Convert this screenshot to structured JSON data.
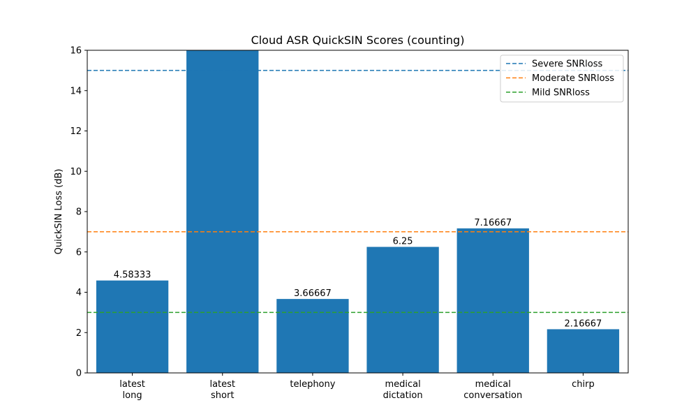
{
  "chart_data": {
    "type": "bar",
    "title": "Cloud ASR QuickSIN Scores (counting)",
    "xlabel": "",
    "ylabel": "QuickSIN Loss (dB)",
    "ylim": [
      0,
      16
    ],
    "yticks": [
      0,
      2,
      4,
      6,
      8,
      10,
      12,
      14,
      16
    ],
    "categories": [
      [
        "latest",
        "long"
      ],
      [
        "latest",
        "short"
      ],
      [
        "telephony"
      ],
      [
        "medical",
        "dictation"
      ],
      [
        "medical",
        "conversation"
      ],
      [
        "chirp"
      ]
    ],
    "values": [
      4.58333,
      16,
      3.66667,
      6.25,
      7.16667,
      2.16667
    ],
    "data_labels": [
      "4.58333",
      "",
      "3.66667",
      "6.25",
      "7.16667",
      "2.16667"
    ],
    "bar_color": "#1f77b4",
    "reference_lines": [
      {
        "name": "Severe SNRloss",
        "y": 15,
        "color": "#1f77b4",
        "style": "dashed"
      },
      {
        "name": "Moderate SNRloss",
        "y": 7,
        "color": "#ff7f0e",
        "style": "dashed"
      },
      {
        "name": "Mild SNRloss",
        "y": 3,
        "color": "#2ca02c",
        "style": "dashed"
      }
    ],
    "legend_position": "top-right",
    "grid": false
  }
}
